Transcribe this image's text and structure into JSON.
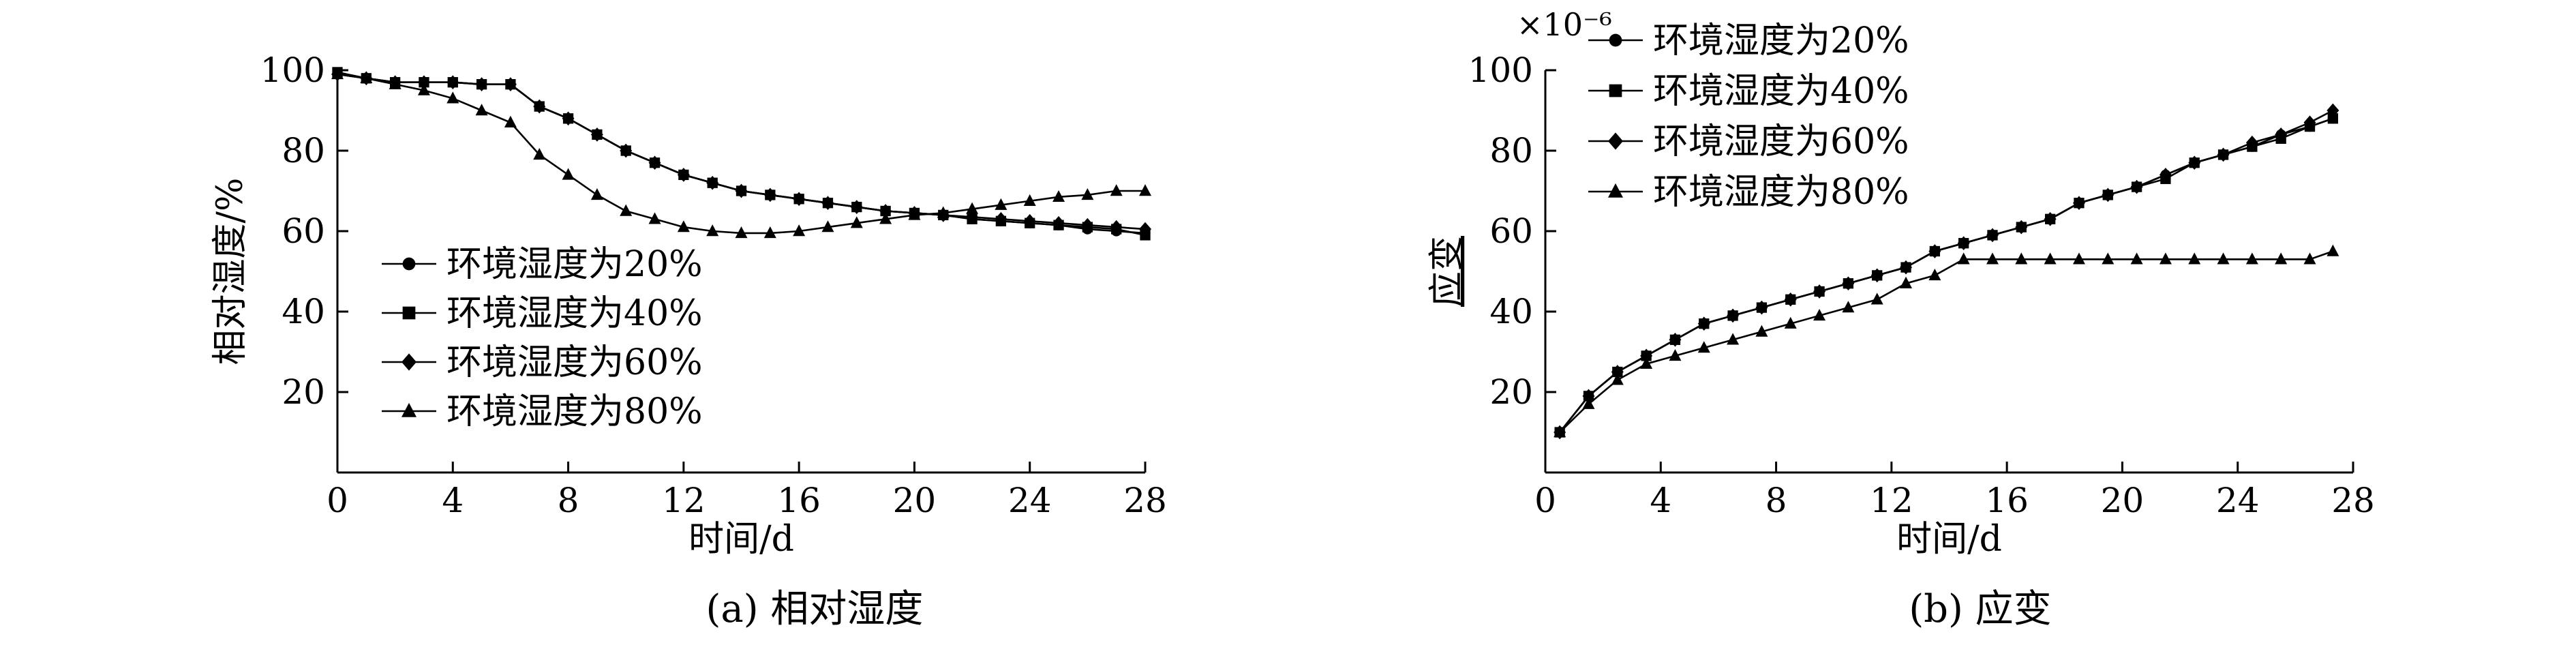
{
  "chart_data": [
    {
      "type": "line",
      "title": "",
      "caption": "(a) 相对湿度",
      "xlabel": "时间/d",
      "ylabel": "相对湿度/%",
      "xlim": [
        0,
        28
      ],
      "ylim": [
        0,
        100
      ],
      "xticks": [
        0,
        4,
        8,
        12,
        16,
        20,
        24,
        28
      ],
      "yticks": [
        20,
        40,
        60,
        80,
        100
      ],
      "grid": false,
      "legend_position": "bottom-left",
      "series": [
        {
          "name": "环境湿度为20%",
          "marker": "circle",
          "x": [
            0,
            1,
            2,
            3,
            4,
            5,
            6,
            7,
            8,
            9,
            10,
            11,
            12,
            13,
            14,
            15,
            16,
            17,
            18,
            19,
            20,
            21,
            22,
            23,
            24,
            25,
            26,
            27,
            28
          ],
          "y": [
            99,
            98,
            97,
            97,
            97,
            96.5,
            96.5,
            91,
            88,
            84,
            80,
            77,
            74,
            72,
            70,
            69,
            68,
            67,
            66,
            65,
            64.5,
            64,
            63,
            62.5,
            62,
            61.5,
            60.5,
            60,
            59.5
          ]
        },
        {
          "name": "环境湿度为40%",
          "marker": "square",
          "x": [
            0,
            1,
            2,
            3,
            4,
            5,
            6,
            7,
            8,
            9,
            10,
            11,
            12,
            13,
            14,
            15,
            16,
            17,
            18,
            19,
            20,
            21,
            22,
            23,
            24,
            25,
            26,
            27,
            28
          ],
          "y": [
            99.5,
            98,
            97,
            97,
            97,
            96.5,
            96.5,
            91,
            88,
            84,
            80,
            77,
            74,
            72,
            70,
            69,
            68,
            67,
            66,
            65,
            64.5,
            64,
            63,
            62.5,
            62,
            61.5,
            61,
            60.5,
            59
          ]
        },
        {
          "name": "环境湿度为60%",
          "marker": "diamond",
          "x": [
            0,
            1,
            2,
            3,
            4,
            5,
            6,
            7,
            8,
            9,
            10,
            11,
            12,
            13,
            14,
            15,
            16,
            17,
            18,
            19,
            20,
            21,
            22,
            23,
            24,
            25,
            26,
            27,
            28
          ],
          "y": [
            99,
            98,
            97,
            97,
            97,
            96.5,
            96.5,
            91,
            88,
            84,
            80,
            77,
            74,
            72,
            70,
            69,
            68,
            67,
            66,
            65,
            64.5,
            64,
            63.5,
            63,
            62.5,
            62,
            61.5,
            61,
            60.5
          ]
        },
        {
          "name": "环境湿度为80%",
          "marker": "triangle",
          "x": [
            0,
            1,
            2,
            3,
            4,
            5,
            6,
            7,
            8,
            9,
            10,
            11,
            12,
            13,
            14,
            15,
            16,
            17,
            18,
            19,
            20,
            21,
            22,
            23,
            24,
            25,
            26,
            27,
            28
          ],
          "y": [
            99,
            98,
            96.5,
            95,
            93,
            90,
            87,
            79,
            74,
            69,
            65,
            63,
            61,
            60,
            59.5,
            59.5,
            60,
            61,
            62,
            63,
            64,
            64.5,
            65.5,
            66.5,
            67.5,
            68.5,
            69,
            70,
            70
          ]
        }
      ]
    },
    {
      "type": "line",
      "title": "",
      "caption": "(b) 应变",
      "xlabel": "时间/d",
      "ylabel": "应变",
      "scale_note": "×10⁻⁶",
      "xlim": [
        0,
        28
      ],
      "ylim": [
        0,
        100
      ],
      "xticks": [
        0,
        4,
        8,
        12,
        16,
        20,
        24,
        28
      ],
      "yticks": [
        20,
        40,
        60,
        80,
        100
      ],
      "grid": false,
      "legend_position": "top-left",
      "series": [
        {
          "name": "环境湿度为20%",
          "marker": "circle",
          "x": [
            0.5,
            1.5,
            2.5,
            3.5,
            4.5,
            5.5,
            6.5,
            7.5,
            8.5,
            9.5,
            10.5,
            11.5,
            12.5,
            13.5,
            14.5,
            15.5,
            16.5,
            17.5,
            18.5,
            19.5,
            20.5,
            21.5,
            22.5,
            23.5,
            24.5,
            25.5,
            26.5,
            27.3
          ],
          "y": [
            10,
            19,
            25,
            29,
            33,
            37,
            39,
            41,
            43,
            45,
            47,
            49,
            51,
            55,
            57,
            59,
            61,
            63,
            67,
            69,
            71,
            74,
            77,
            79,
            81,
            84,
            86,
            88
          ]
        },
        {
          "name": "环境湿度为40%",
          "marker": "square",
          "x": [
            0.5,
            1.5,
            2.5,
            3.5,
            4.5,
            5.5,
            6.5,
            7.5,
            8.5,
            9.5,
            10.5,
            11.5,
            12.5,
            13.5,
            14.5,
            15.5,
            16.5,
            17.5,
            18.5,
            19.5,
            20.5,
            21.5,
            22.5,
            23.5,
            24.5,
            25.5,
            26.5,
            27.3
          ],
          "y": [
            10,
            19,
            25,
            29,
            33,
            37,
            39,
            41,
            43,
            45,
            47,
            49,
            51,
            55,
            57,
            59,
            61,
            63,
            67,
            69,
            71,
            73,
            77,
            79,
            81,
            83,
            86,
            88
          ]
        },
        {
          "name": "环境湿度为60%",
          "marker": "diamond",
          "x": [
            0.5,
            1.5,
            2.5,
            3.5,
            4.5,
            5.5,
            6.5,
            7.5,
            8.5,
            9.5,
            10.5,
            11.5,
            12.5,
            13.5,
            14.5,
            15.5,
            16.5,
            17.5,
            18.5,
            19.5,
            20.5,
            21.5,
            22.5,
            23.5,
            24.5,
            25.5,
            26.5,
            27.3
          ],
          "y": [
            10,
            19,
            25,
            29,
            33,
            37,
            39,
            41,
            43,
            45,
            47,
            49,
            51,
            55,
            57,
            59,
            61,
            63,
            67,
            69,
            71,
            74,
            77,
            79,
            82,
            84,
            87,
            90
          ]
        },
        {
          "name": "环境湿度为80%",
          "marker": "triangle",
          "x": [
            0.5,
            1.5,
            2.5,
            3.5,
            4.5,
            5.5,
            6.5,
            7.5,
            8.5,
            9.5,
            10.5,
            11.5,
            12.5,
            13.5,
            14.5,
            15.5,
            16.5,
            17.5,
            18.5,
            19.5,
            20.5,
            21.5,
            22.5,
            23.5,
            24.5,
            25.5,
            26.5,
            27.3
          ],
          "y": [
            10,
            17,
            23,
            27,
            29,
            31,
            33,
            35,
            37,
            39,
            41,
            43,
            47,
            49,
            53,
            53,
            53,
            53,
            53,
            53,
            53,
            53,
            53,
            53,
            53,
            53,
            53,
            55
          ]
        }
      ]
    }
  ]
}
